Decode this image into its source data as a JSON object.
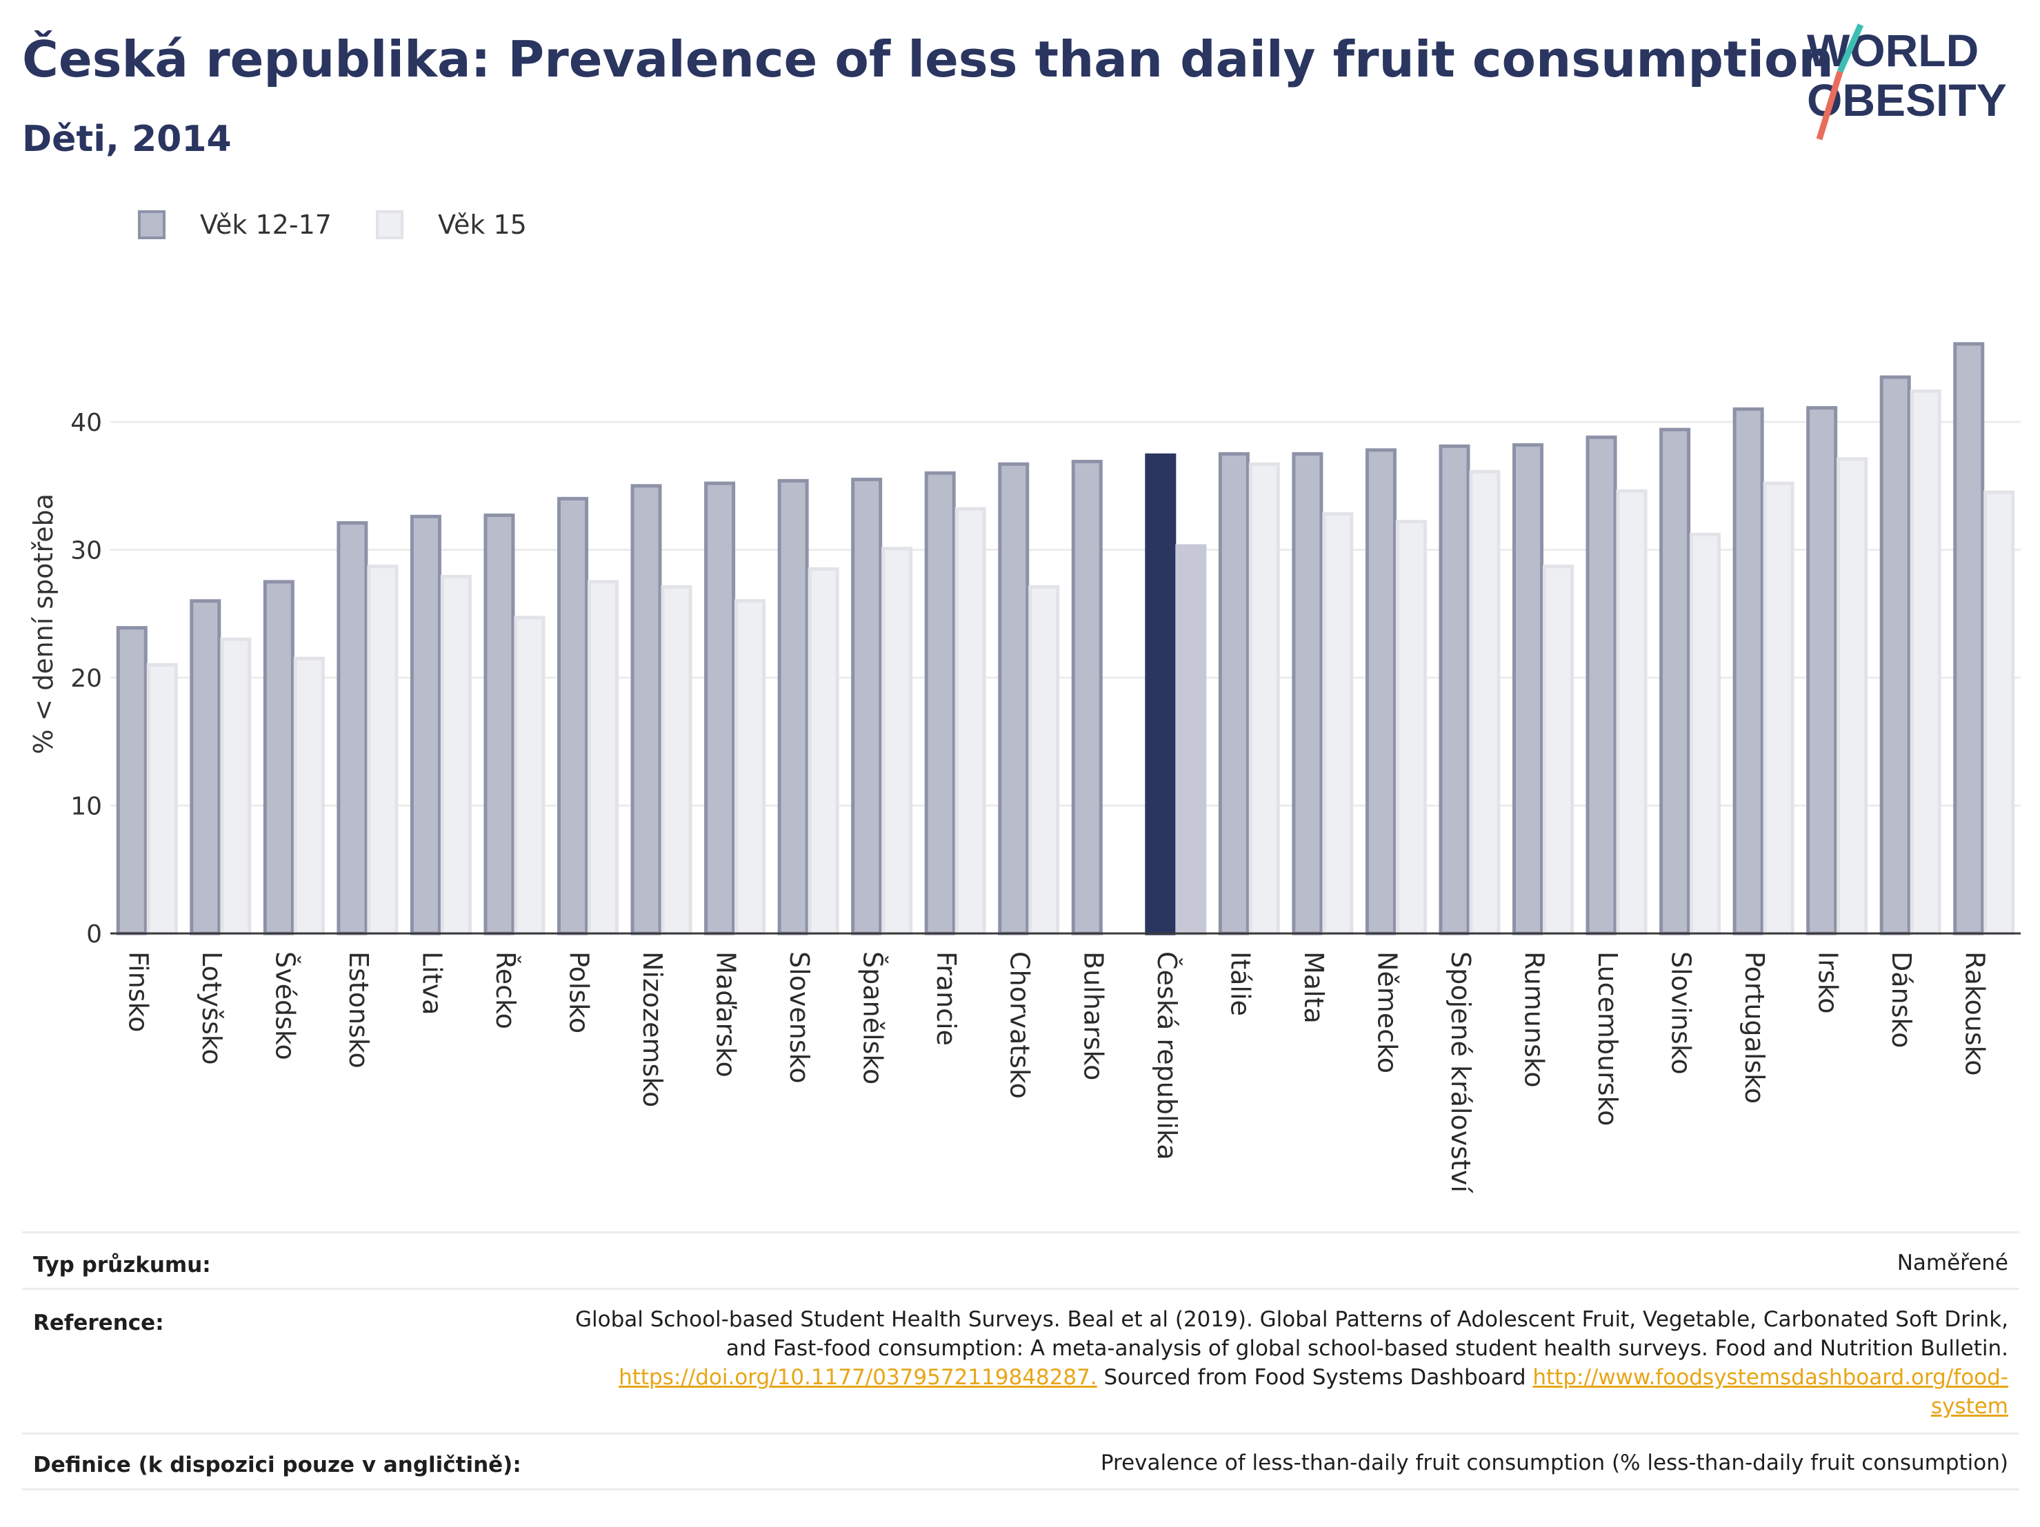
{
  "header": {
    "title": "Česká republika: Prevalence of less than daily fruit consumption",
    "subtitle": "Děti, 2014"
  },
  "logo": {
    "line1": "WORLD",
    "line2": "OBESITY"
  },
  "colors": {
    "series1_fill": "#b9bccb",
    "series1_stroke": "#8d92a8",
    "series2_fill": "#eeeff3",
    "series2_stroke": "#e2e3e8",
    "highlight1": "#2a3560",
    "highlight2": "#c6c9d5",
    "title": "#2a3560",
    "link": "#e7a516",
    "logo_slash_top": "#3cbfb2",
    "logo_slash_bottom": "#e86d5c"
  },
  "chart_data": {
    "type": "bar",
    "ylabel": "% < denní spotřeba",
    "ylim": [
      0,
      48
    ],
    "yticks": [
      0,
      10,
      20,
      30,
      40
    ],
    "grid": true,
    "legend_position": "top-left",
    "highlight_category": "Česká republika",
    "categories": [
      "Finsko",
      "Lotyšsko",
      "Švédsko",
      "Estonsko",
      "Litva",
      "Řecko",
      "Polsko",
      "Nizozemsko",
      "Maďarsko",
      "Slovensko",
      "Španělsko",
      "Francie",
      "Chorvatsko",
      "Bulharsko",
      "Česká republika",
      "Itálie",
      "Malta",
      "Německo",
      "Spojené království",
      "Rumunsko",
      "Lucembursko",
      "Slovinsko",
      "Portugalsko",
      "Irsko",
      "Dánsko",
      "Rakousko"
    ],
    "series": [
      {
        "name": "Věk 12-17",
        "values": [
          23.9,
          26.0,
          27.5,
          32.1,
          32.6,
          32.7,
          34.0,
          35.0,
          35.2,
          35.4,
          35.5,
          36.0,
          36.7,
          36.9,
          37.4,
          37.5,
          37.5,
          37.8,
          38.1,
          38.2,
          38.8,
          39.4,
          41.0,
          41.1,
          43.5,
          46.1
        ]
      },
      {
        "name": "Věk 15",
        "values": [
          21.0,
          23.0,
          21.5,
          28.7,
          27.9,
          24.7,
          27.5,
          27.1,
          26.0,
          28.5,
          30.1,
          33.2,
          27.1,
          null,
          30.3,
          36.7,
          32.8,
          32.2,
          36.1,
          28.7,
          34.6,
          31.2,
          35.2,
          37.1,
          42.4,
          34.5
        ]
      }
    ]
  },
  "meta": {
    "survey_type_label": "Typ průzkumu:",
    "survey_type_value": "Naměřené",
    "reference_label": "Reference:",
    "reference_line1": "Global School-based Student Health Surveys. Beal et al (2019). Global Patterns of Adolescent Fruit, Vegetable, Carbonated Soft Drink,",
    "reference_line2": "and Fast-food consumption: A meta-analysis of global school-based student health surveys. Food and Nutrition Bulletin.",
    "reference_doi": "https://doi.org/10.1177/0379572119848287.",
    "reference_sourced": " Sourced from Food Systems Dashboard ",
    "reference_link_a": "http://www.foodsystemsdashboard.org/food-",
    "reference_link_b": "system",
    "definition_label": "Definice (k dispozici pouze v angličtině):",
    "definition_value": "Prevalence of less-than-daily fruit consumption (% less-than-daily fruit consumption)"
  }
}
